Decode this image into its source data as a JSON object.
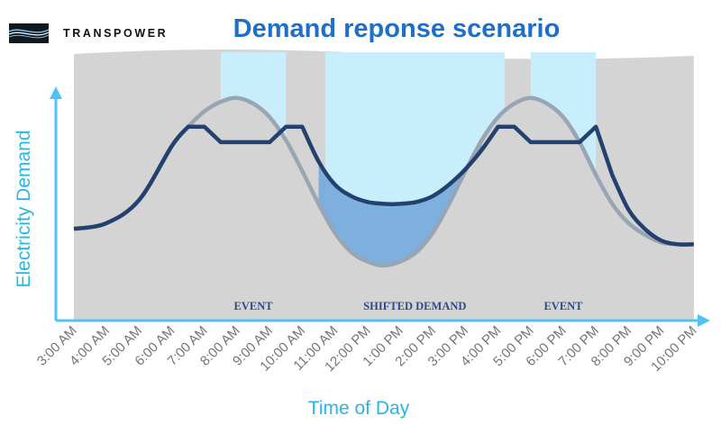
{
  "brand": {
    "name": "TRANSPOWER",
    "logo_icon": "transpower-logo-icon"
  },
  "colors": {
    "title": "#1f6fc6",
    "axis": "#4fc3f7",
    "background_area": "#d4d4d4",
    "shift_band": "#c8eefc",
    "demand_line": "#22416f",
    "original_curve": "#9aa5b3",
    "shifted_fill": "#74a9da",
    "band_label": "#2e4b86"
  },
  "chart_data": {
    "type": "area",
    "title": "Demand reponse scenario",
    "xlabel": "Time of Day",
    "ylabel": "Electricity Demand",
    "x_ticks": [
      "3:00 AM",
      "4:00 AM",
      "5:00 AM",
      "6:00 AM",
      "7:00 AM",
      "8:00 AM",
      "9:00 AM",
      "10:00 AM",
      "11:00 AM",
      "12:00 PM",
      "1:00 PM",
      "2:00 PM",
      "3:00 PM",
      "4:00 PM",
      "5:00 PM",
      "6:00 PM",
      "7:00 PM",
      "8:00 PM",
      "9:00 PM",
      "10:00 PM"
    ],
    "x_range": [
      3,
      22
    ],
    "y_range": [
      0,
      100
    ],
    "grid": false,
    "legend": "none",
    "y_values_note": "no numeric y scale printed; values are relative demand",
    "bands": [
      {
        "label": "EVENT",
        "start": 7.5,
        "end": 9.5,
        "color": "#c8eefc"
      },
      {
        "label": "SHIFTED DEMAND",
        "start": 10.7,
        "end": 16.2,
        "color": "#c8eefc"
      },
      {
        "label": "EVENT",
        "start": 17.0,
        "end": 19.0,
        "color": "#c8eefc"
      }
    ],
    "series": [
      {
        "role": "original",
        "color": "#9aa5b3",
        "x": [
          3,
          4,
          5,
          6,
          6.5,
          7,
          7.5,
          8,
          8.5,
          9,
          9.5,
          10,
          10.5,
          11,
          11.5,
          12,
          12.5,
          13,
          13.5,
          14,
          14.5,
          15,
          15.5,
          16,
          16.5,
          17,
          17.5,
          18,
          18.5,
          19,
          19.5,
          20,
          20.5,
          21,
          21.5,
          22
        ],
        "y": [
          27,
          30,
          42,
          70,
          80,
          88,
          93,
          95,
          92,
          85,
          73,
          57,
          40,
          25,
          15,
          10,
          8,
          10,
          15,
          25,
          40,
          57,
          73,
          85,
          92,
          95,
          92,
          85,
          72,
          55,
          40,
          30,
          24,
          20,
          19,
          19
        ]
      },
      {
        "role": "demand-response",
        "color": "#22416f",
        "x": [
          3,
          4,
          5,
          6,
          6.5,
          7,
          7.5,
          8,
          8.5,
          9,
          9.5,
          10,
          10.5,
          11,
          11.5,
          12,
          12.5,
          13,
          13.5,
          14,
          14.5,
          15,
          15.5,
          16,
          16.5,
          17,
          17.5,
          18,
          18.5,
          19,
          19.5,
          20,
          20.5,
          21,
          21.5,
          22
        ],
        "y": [
          27,
          30,
          42,
          70,
          80,
          80,
          72,
          72,
          72,
          72,
          80,
          80,
          62,
          50,
          44,
          41,
          40,
          40,
          41,
          44,
          50,
          58,
          68,
          80,
          80,
          72,
          72,
          72,
          72,
          80,
          55,
          37,
          27,
          21,
          19,
          19
        ]
      }
    ]
  }
}
